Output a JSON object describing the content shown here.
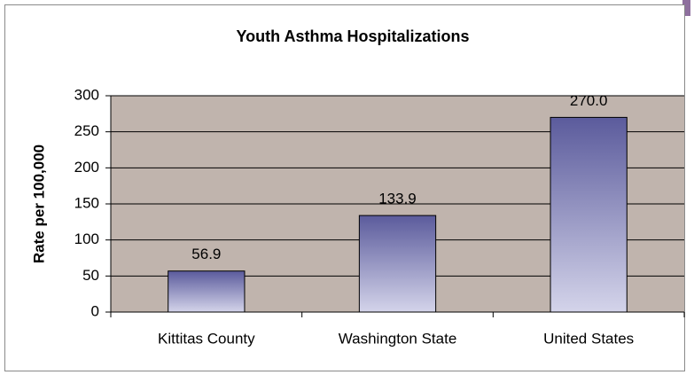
{
  "chart_data": {
    "type": "bar",
    "title": "Youth Asthma Hospitalizations",
    "y_label": "Rate per 100,000",
    "categories": [
      "Kittitas County",
      "Washington State",
      "United States"
    ],
    "values": [
      56.9,
      133.9,
      270.0
    ],
    "value_labels": [
      "56.9",
      "133.9",
      "270.0"
    ],
    "color": "#5b5b9c",
    "ylim": [
      0,
      300
    ],
    "yticks": [
      0,
      50,
      100,
      150,
      200,
      250,
      300
    ],
    "grid": true
  }
}
